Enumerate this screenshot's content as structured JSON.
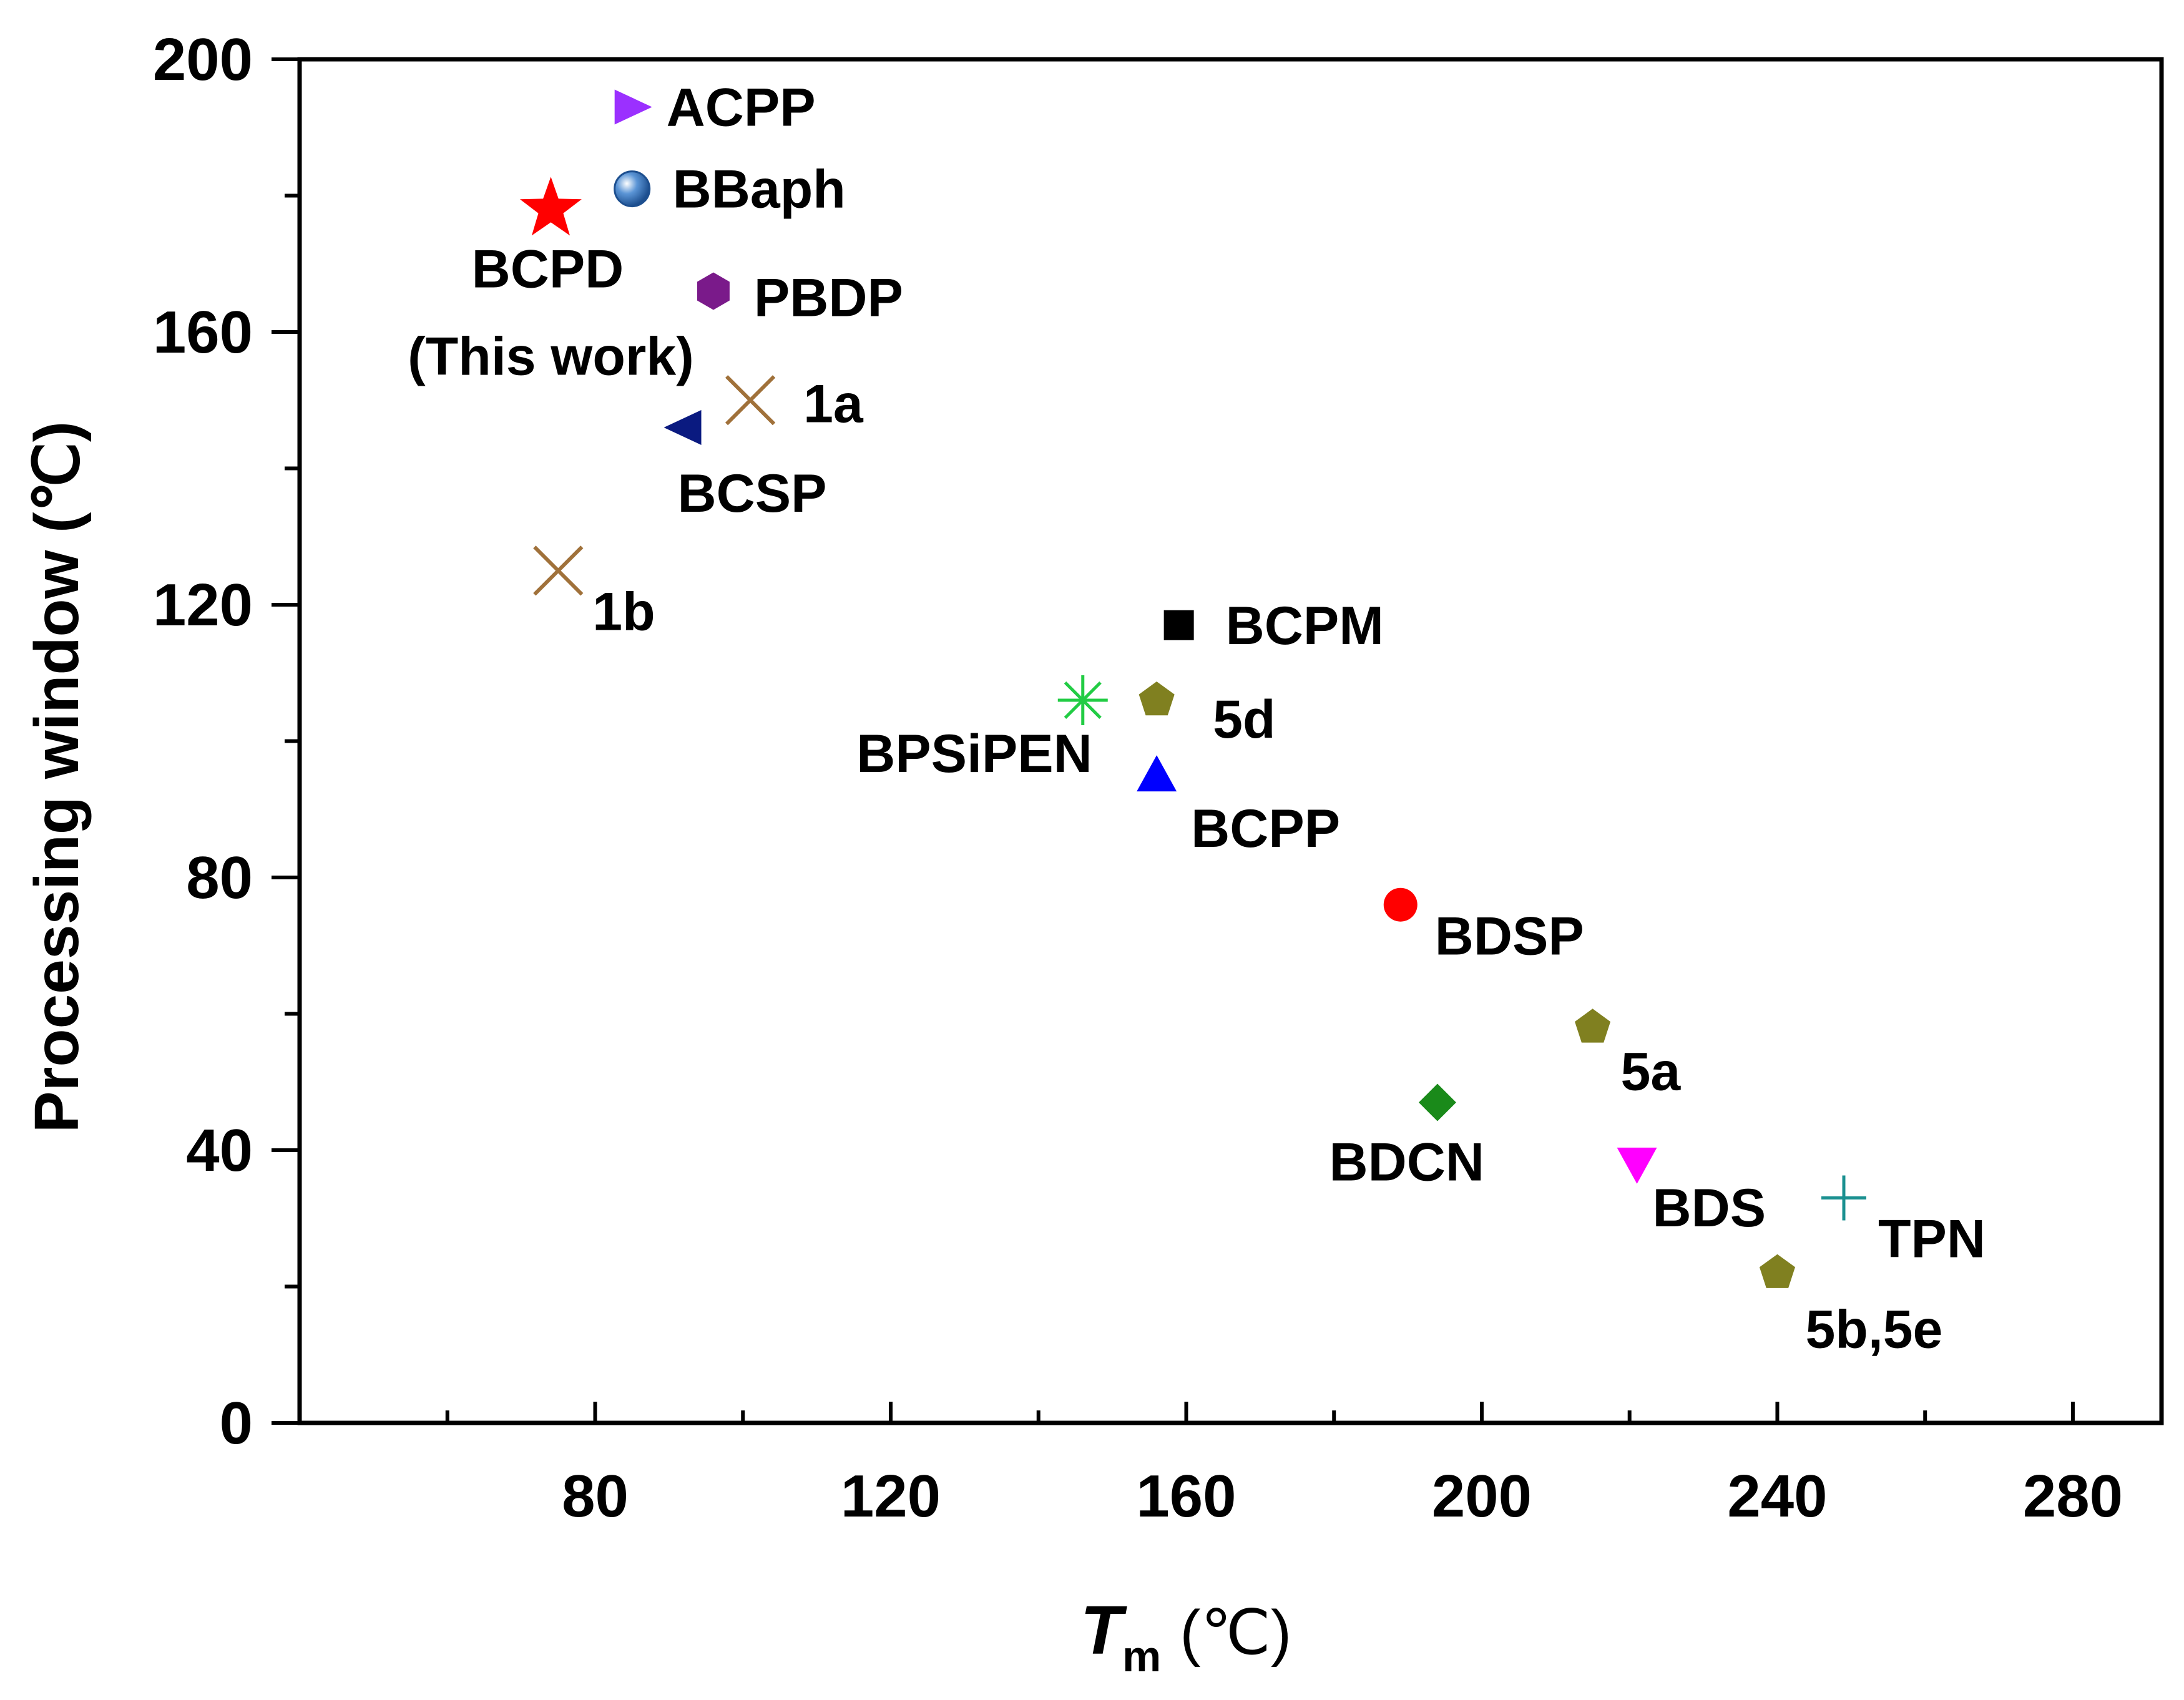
{
  "chart_data": {
    "type": "scatter",
    "title": "",
    "xlabel": {
      "symbol": "T",
      "subscript": "m",
      "unit": "(℃)"
    },
    "ylabel": "Processing window (℃)",
    "xlim": [
      40,
      292
    ],
    "ylim": [
      0,
      200
    ],
    "x_ticks": [
      80,
      120,
      160,
      200,
      240,
      280
    ],
    "y_ticks": [
      0,
      40,
      80,
      120,
      160,
      200
    ],
    "grid": false,
    "legend": "none",
    "points": [
      {
        "id": "bcpd",
        "label": "BCPD",
        "sublabel": "(This work)",
        "x": 74,
        "y": 178,
        "marker": "star",
        "color": "#ff0000",
        "label_color": "#ff0000"
      },
      {
        "id": "acpp",
        "label": "ACPP",
        "x": 85,
        "y": 193,
        "marker": "triangle-right",
        "color": "#9b30ff"
      },
      {
        "id": "bbaph",
        "label": "BBaph",
        "x": 85,
        "y": 181,
        "marker": "sphere",
        "color": "#2a6db8"
      },
      {
        "id": "pbdp",
        "label": "PBDP",
        "x": 96,
        "y": 166,
        "marker": "hexagon",
        "color": "#7a1a8a"
      },
      {
        "id": "1a",
        "label": "1a",
        "x": 101,
        "y": 150,
        "marker": "x",
        "color": "#a0713a"
      },
      {
        "id": "bcsp",
        "label": "BCSP",
        "x": 92,
        "y": 146,
        "marker": "triangle-left",
        "color": "#0a1a80"
      },
      {
        "id": "1b",
        "label": "1b",
        "x": 75,
        "y": 125,
        "marker": "x",
        "color": "#a0713a"
      },
      {
        "id": "bcpm",
        "label": "BCPM",
        "x": 159,
        "y": 117,
        "marker": "square",
        "color": "#000000"
      },
      {
        "id": "5d",
        "label": "5d",
        "x": 156,
        "y": 106,
        "marker": "pentagon",
        "color": "#808020"
      },
      {
        "id": "bpsipen",
        "label": "BPSiPEN",
        "x": 146,
        "y": 106,
        "marker": "asterisk",
        "color": "#22cc44"
      },
      {
        "id": "bcpp",
        "label": "BCPP",
        "x": 156,
        "y": 95,
        "marker": "triangle-up",
        "color": "#0000ff"
      },
      {
        "id": "bdsp",
        "label": "BDSP",
        "x": 189,
        "y": 76,
        "marker": "circle",
        "color": "#ff0000"
      },
      {
        "id": "5a",
        "label": "5a",
        "x": 215,
        "y": 58,
        "marker": "pentagon",
        "color": "#808020"
      },
      {
        "id": "bdcn",
        "label": "BDCN",
        "x": 194,
        "y": 47,
        "marker": "diamond",
        "color": "#1a8a1a"
      },
      {
        "id": "bds",
        "label": "BDS",
        "x": 221,
        "y": 38,
        "marker": "triangle-down",
        "color": "#ff00ff"
      },
      {
        "id": "tpn",
        "label": "TPN",
        "x": 249,
        "y": 33,
        "marker": "plus",
        "color": "#1a9090"
      },
      {
        "id": "5b5e",
        "label": "5b,5e",
        "x": 240,
        "y": 22,
        "marker": "pentagon",
        "color": "#808020"
      }
    ]
  }
}
